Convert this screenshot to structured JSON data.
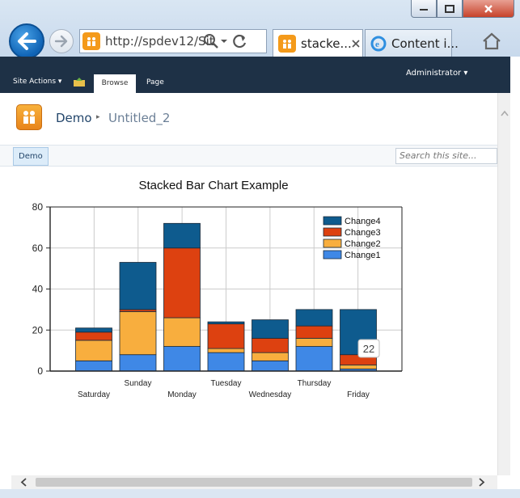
{
  "browser": {
    "address": "http://spdev12/Sit",
    "tabs": [
      {
        "label": "stacke..."
      },
      {
        "label": "Content i..."
      }
    ]
  },
  "ribbon": {
    "site_actions": "Site Actions ▾",
    "browse": "Browse",
    "page": "Page",
    "user": "Administrator ▾"
  },
  "breadcrumb": {
    "site": "Demo",
    "separator": "▸",
    "page": "Untitled_2"
  },
  "topnav": {
    "item": "Demo",
    "search_placeholder": "Search this site..."
  },
  "colors": {
    "Change1": "#3f88e6",
    "Change2": "#f8ae3e",
    "Change3": "#dd4110",
    "Change4": "#0e5b8e"
  },
  "tooltip": "22",
  "chart_data": {
    "type": "bar",
    "stacked": true,
    "title": "Stacked Bar Chart Example",
    "categories": [
      "Saturday",
      "Sunday",
      "Monday",
      "Tuesday",
      "Wednesday",
      "Thursday",
      "Friday"
    ],
    "ylim": [
      0,
      80
    ],
    "yticks": [
      0,
      20,
      40,
      60,
      80
    ],
    "grid": true,
    "legend_position": "top-right",
    "series": [
      {
        "name": "Change1",
        "values": [
          5,
          8,
          12,
          9,
          5,
          12,
          1
        ]
      },
      {
        "name": "Change2",
        "values": [
          10,
          21,
          14,
          2,
          4,
          4,
          2
        ]
      },
      {
        "name": "Change3",
        "values": [
          4,
          1,
          34,
          12,
          7,
          6,
          5
        ]
      },
      {
        "name": "Change4",
        "values": [
          2,
          23,
          12,
          1,
          9,
          8,
          22
        ]
      }
    ]
  }
}
